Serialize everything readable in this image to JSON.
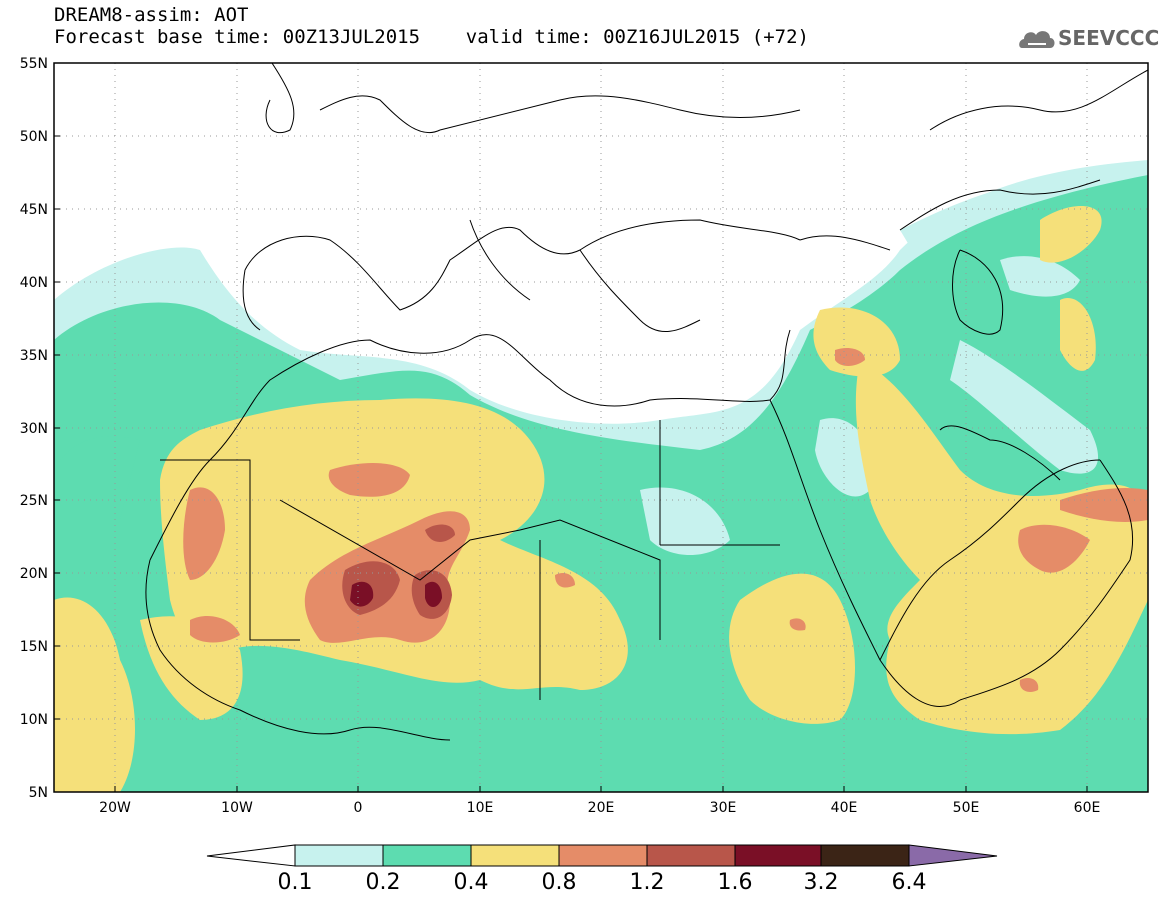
{
  "header": {
    "line1": "DREAM8-assim: AOT",
    "line2": "Forecast base time: 00Z13JUL2015    valid time: 00Z16JUL2015 (+72)"
  },
  "logo": {
    "text": "SEEVCCC",
    "icon": "cloud-icon"
  },
  "map": {
    "lat_labels": [
      "55N",
      "50N",
      "45N",
      "40N",
      "35N",
      "30N",
      "25N",
      "20N",
      "15N",
      "10N",
      "5N"
    ],
    "lon_labels": [
      "20W",
      "10W",
      "0",
      "10E",
      "20E",
      "30E",
      "40E",
      "50E",
      "60E"
    ],
    "lon_range": [
      -25,
      65
    ],
    "lat_range": [
      5,
      55
    ],
    "gridlines": "dotted"
  },
  "colorbar": {
    "labels": [
      "0.1",
      "0.2",
      "0.4",
      "0.8",
      "1.2",
      "1.6",
      "3.2",
      "6.4"
    ],
    "colors": [
      "#ffffff",
      "#c7f2ee",
      "#5ddcb0",
      "#f5e07a",
      "#e58c68",
      "#b8564a",
      "#7a0f26",
      "#3b2416",
      "#8a6aa8"
    ]
  },
  "colors": {
    "lvl1": "#c7f2ee",
    "lvl2": "#5ddcb0",
    "lvl3": "#f5e07a",
    "lvl4": "#e58c68",
    "lvl5": "#b8564a",
    "lvl6": "#7a0f26"
  }
}
